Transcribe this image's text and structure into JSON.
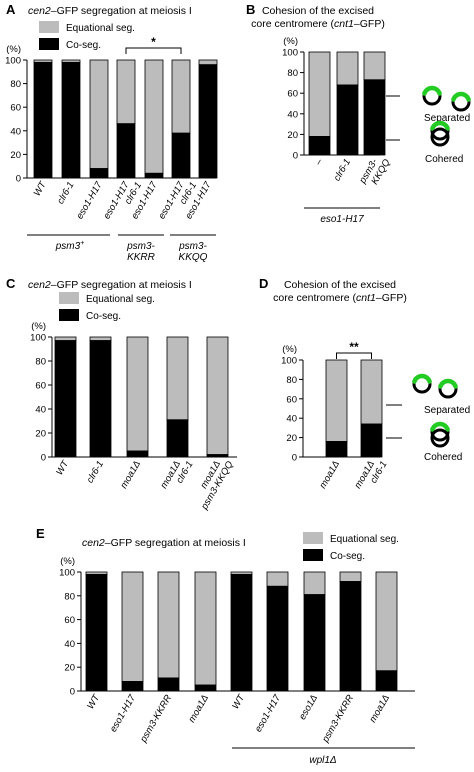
{
  "colors": {
    "co_seg": "#000000",
    "equational": "#bcbcbc",
    "green": "#22cc22"
  },
  "chart_data": [
    {
      "panel": "A",
      "type": "bar",
      "stacked": true,
      "title_italic": "cen2",
      "title_rest": "–GFP segregation at meiosis I",
      "ylabel": "(%)",
      "ylim": [
        0,
        100
      ],
      "yticks": [
        "0",
        "20",
        "40",
        "60",
        "80",
        "100"
      ],
      "legend": [
        "Equational seg.",
        "Co-seg."
      ],
      "legend_position": "top",
      "categories": [
        [
          "WT"
        ],
        [
          "clr6-1"
        ],
        [
          "eso1-H17"
        ],
        [
          "eso1-H17",
          "clr6-1"
        ],
        [
          "eso1-H17"
        ],
        [
          "eso1-H17",
          "clr6-1"
        ],
        [
          "eso1-H17"
        ]
      ],
      "series": [
        {
          "name": "Co-seg.",
          "values": [
            98,
            98,
            8,
            46,
            4,
            38,
            96
          ]
        },
        {
          "name": "Equational seg.",
          "values": [
            2,
            2,
            92,
            54,
            96,
            62,
            4
          ]
        }
      ],
      "groups": [
        {
          "label_main": "psm3",
          "label_sup": "+"
        },
        {
          "label_main": "psm3-",
          "label_sub": "KKRR"
        },
        {
          "label_main": "psm3-",
          "label_sub": "KKQQ"
        }
      ],
      "significance": "*"
    },
    {
      "panel": "B",
      "type": "bar",
      "stacked": true,
      "title_line1": "Cohesion of the excised",
      "title_line2_prefix": "core centromere (",
      "title_line2_italic": "cnt1",
      "title_line2_suffix": "–GFP)",
      "ylabel": "(%)",
      "ylim": [
        0,
        100
      ],
      "yticks": [
        "0",
        "20",
        "40",
        "60",
        "80",
        "100"
      ],
      "categories": [
        [
          "–"
        ],
        [
          "clr6-1"
        ],
        [
          "psm3-",
          "KKQQ"
        ]
      ],
      "series": [
        {
          "name": "Cohered",
          "values": [
            18,
            68,
            73
          ]
        },
        {
          "name": "Separated",
          "values": [
            82,
            32,
            27
          ]
        }
      ],
      "group_label": "eso1-H17",
      "annotations": [
        "Separated",
        "Cohered"
      ]
    },
    {
      "panel": "C",
      "type": "bar",
      "stacked": true,
      "title_italic": "cen2",
      "title_rest": "–GFP segregation at meiosis I",
      "ylabel": "(%)",
      "ylim": [
        0,
        100
      ],
      "yticks": [
        "0",
        "20",
        "40",
        "60",
        "80",
        "100"
      ],
      "legend": [
        "Equational seg.",
        "Co-seg."
      ],
      "legend_position": "top",
      "categories": [
        [
          "WT"
        ],
        [
          "clr6-1"
        ],
        [
          "moa1Δ"
        ],
        [
          "moa1Δ",
          "clr6-1"
        ],
        [
          "moa1Δ",
          "psm3-KKQQ"
        ]
      ],
      "series": [
        {
          "name": "Co-seg.",
          "values": [
            97,
            97,
            5,
            31,
            2
          ]
        },
        {
          "name": "Equational seg.",
          "values": [
            3,
            3,
            95,
            69,
            98
          ]
        }
      ]
    },
    {
      "panel": "D",
      "type": "bar",
      "stacked": true,
      "title_line1": "Cohesion of the excised",
      "title_line2_prefix": "core centromere (",
      "title_line2_italic": "cnt1",
      "title_line2_suffix": "–GFP)",
      "ylabel": "(%)",
      "ylim": [
        0,
        100
      ],
      "yticks": [
        "0",
        "20",
        "40",
        "60",
        "80",
        "100"
      ],
      "categories": [
        [
          "moa1Δ"
        ],
        [
          "moa1Δ",
          "clr6-1"
        ]
      ],
      "series": [
        {
          "name": "Cohered",
          "values": [
            16,
            34
          ]
        },
        {
          "name": "Separated",
          "values": [
            84,
            66
          ]
        }
      ],
      "significance": "**",
      "annotations": [
        "Separated",
        "Cohered"
      ]
    },
    {
      "panel": "E",
      "type": "bar",
      "stacked": true,
      "title_italic": "cen2",
      "title_rest": "–GFP segregation at meiosis I",
      "ylabel": "(%)",
      "ylim": [
        0,
        100
      ],
      "yticks": [
        "0",
        "20",
        "40",
        "60",
        "80",
        "100"
      ],
      "legend": [
        "Equational seg.",
        "Co-seg."
      ],
      "legend_position": "top",
      "categories": [
        [
          "WT"
        ],
        [
          "eso1-H17"
        ],
        [
          "psm3-KKRR"
        ],
        [
          "moa1Δ"
        ],
        [
          "WT"
        ],
        [
          "eso1-H17"
        ],
        [
          "eso1Δ"
        ],
        [
          "psm3-KKRR"
        ],
        [
          "moa1Δ"
        ]
      ],
      "series": [
        {
          "name": "Co-seg.",
          "values": [
            98,
            8,
            11,
            5,
            98,
            88,
            81,
            92,
            17
          ]
        },
        {
          "name": "Equational seg.",
          "values": [
            2,
            92,
            89,
            95,
            2,
            12,
            19,
            8,
            83
          ]
        }
      ],
      "group_label": "wpl1Δ"
    }
  ]
}
